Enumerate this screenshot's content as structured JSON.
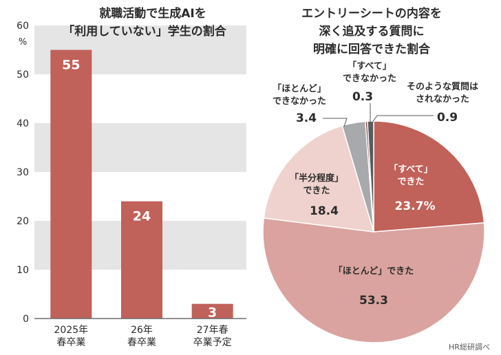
{
  "chart_data": [
    {
      "type": "bar",
      "title": "就職活動で生成AIを\n「利用していない」学生の割合",
      "ylabel": "%",
      "ylim": [
        0,
        60
      ],
      "yticks": [
        0,
        10,
        20,
        30,
        40,
        50,
        60
      ],
      "grid": "alternating horizontal bands",
      "categories": [
        "2025年\n春卒業",
        "26年\n春卒業",
        "27年春\n卒業予定"
      ],
      "values": [
        55,
        24,
        3
      ],
      "data_labels": [
        "55",
        "24",
        "3"
      ],
      "colors": {
        "bar": "#c0615a",
        "band": "#e5e5e5",
        "axis": "#6b6b6b"
      }
    },
    {
      "type": "pie",
      "title": "エントリーシートの内容を\n深く追及する質問に\n明確に回答できた割合",
      "unit": "%",
      "slices": [
        {
          "label": "「すべて」\nできた",
          "value": 23.7,
          "value_label": "23.7%",
          "color": "#c0615a"
        },
        {
          "label": "「ほとんど」できた",
          "value": 53.3,
          "value_label": "53.3",
          "color": "#daa39f"
        },
        {
          "label": "「半分程度」\nできた",
          "value": 18.4,
          "value_label": "18.4",
          "color": "#efd2cd"
        },
        {
          "label": "「ほとんど」\nできなかった",
          "value": 3.4,
          "value_label": "3.4",
          "color": "#a8a9ad"
        },
        {
          "label": "「すべて」\nできなかった",
          "value": 0.3,
          "value_label": "0.3",
          "color": "#7c4744"
        },
        {
          "label": "そのような質問は\nされなかった",
          "value": 0.9,
          "value_label": "0.9",
          "color": "#5b5b5e"
        }
      ]
    }
  ],
  "source": "HR総研調べ",
  "colors": {
    "text": "#2b2b2b",
    "label_white": "#ffffff"
  }
}
